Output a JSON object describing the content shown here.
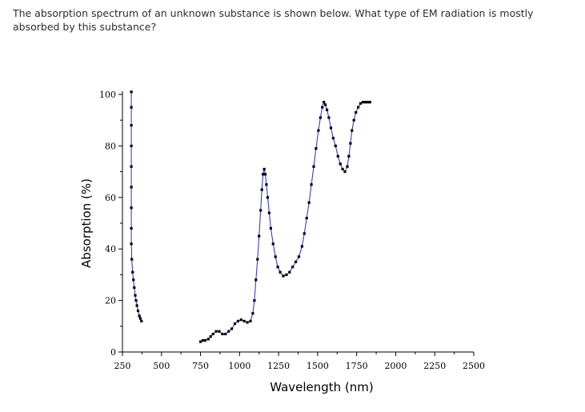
{
  "question": {
    "text": "The absorption spectrum of an unknown substance is shown below. What type of EM radiation is mostly absorbed by this substance?"
  },
  "chart_data": {
    "type": "scatter",
    "title": "",
    "xlabel": "Wavelength (nm)",
    "ylabel": "Absorption (%)",
    "xlim": [
      250,
      2500
    ],
    "ylim": [
      0,
      100
    ],
    "x_ticks": [
      250,
      500,
      750,
      1000,
      1250,
      1500,
      1750,
      2000,
      2250,
      2500
    ],
    "y_ticks": [
      0,
      20,
      40,
      60,
      80,
      100
    ],
    "grid": false,
    "legend": "none",
    "marker_color": "#000000",
    "line_color": "#1f2fd0",
    "series": [
      {
        "values": [
          [
            307,
            101
          ],
          [
            307,
            95
          ],
          [
            307,
            88
          ],
          [
            307,
            80
          ],
          [
            307,
            72
          ],
          [
            307,
            64
          ],
          [
            307,
            56
          ],
          [
            307,
            48
          ],
          [
            307,
            42
          ],
          [
            310,
            36
          ],
          [
            315,
            31
          ],
          [
            320,
            28
          ],
          [
            326,
            25
          ],
          [
            332,
            22
          ],
          [
            337,
            20
          ],
          [
            343,
            18
          ],
          [
            350,
            16
          ],
          [
            358,
            14
          ],
          [
            365,
            13
          ],
          [
            372,
            12
          ]
        ]
      },
      {
        "values": [
          [
            750,
            4
          ],
          [
            765,
            4.5
          ],
          [
            780,
            4.5
          ],
          [
            800,
            5
          ],
          [
            815,
            6
          ],
          [
            830,
            7
          ],
          [
            850,
            8
          ],
          [
            870,
            8
          ],
          [
            890,
            7
          ],
          [
            910,
            7
          ],
          [
            930,
            8
          ],
          [
            950,
            9
          ],
          [
            970,
            11
          ],
          [
            990,
            12
          ],
          [
            1010,
            12.5
          ],
          [
            1030,
            12
          ],
          [
            1050,
            11.5
          ],
          [
            1070,
            12
          ],
          [
            1085,
            15
          ],
          [
            1095,
            20
          ],
          [
            1105,
            28
          ],
          [
            1115,
            36
          ],
          [
            1125,
            45
          ],
          [
            1135,
            55
          ],
          [
            1143,
            63
          ],
          [
            1150,
            69
          ],
          [
            1158,
            71
          ],
          [
            1165,
            69
          ],
          [
            1172,
            65
          ],
          [
            1180,
            60
          ],
          [
            1190,
            54
          ],
          [
            1200,
            48
          ],
          [
            1215,
            42
          ],
          [
            1230,
            37
          ],
          [
            1245,
            33
          ],
          [
            1260,
            31
          ],
          [
            1280,
            29.5
          ],
          [
            1300,
            30
          ],
          [
            1320,
            31
          ],
          [
            1340,
            33
          ],
          [
            1360,
            35
          ],
          [
            1380,
            37
          ],
          [
            1400,
            41
          ],
          [
            1415,
            46
          ],
          [
            1430,
            52
          ],
          [
            1445,
            58
          ],
          [
            1460,
            65
          ],
          [
            1475,
            72
          ],
          [
            1490,
            79
          ],
          [
            1505,
            86
          ],
          [
            1518,
            91
          ],
          [
            1530,
            95
          ],
          [
            1540,
            97
          ],
          [
            1550,
            96
          ],
          [
            1560,
            94
          ],
          [
            1572,
            91
          ],
          [
            1585,
            87
          ],
          [
            1600,
            83
          ],
          [
            1615,
            80
          ],
          [
            1630,
            76
          ],
          [
            1645,
            73
          ],
          [
            1660,
            71
          ],
          [
            1675,
            70
          ],
          [
            1690,
            72
          ],
          [
            1700,
            76
          ],
          [
            1710,
            81
          ],
          [
            1720,
            86
          ],
          [
            1732,
            90
          ],
          [
            1745,
            93
          ],
          [
            1760,
            95
          ],
          [
            1775,
            96.5
          ],
          [
            1790,
            97
          ],
          [
            1805,
            97
          ],
          [
            1820,
            97
          ],
          [
            1835,
            97
          ]
        ]
      }
    ]
  }
}
